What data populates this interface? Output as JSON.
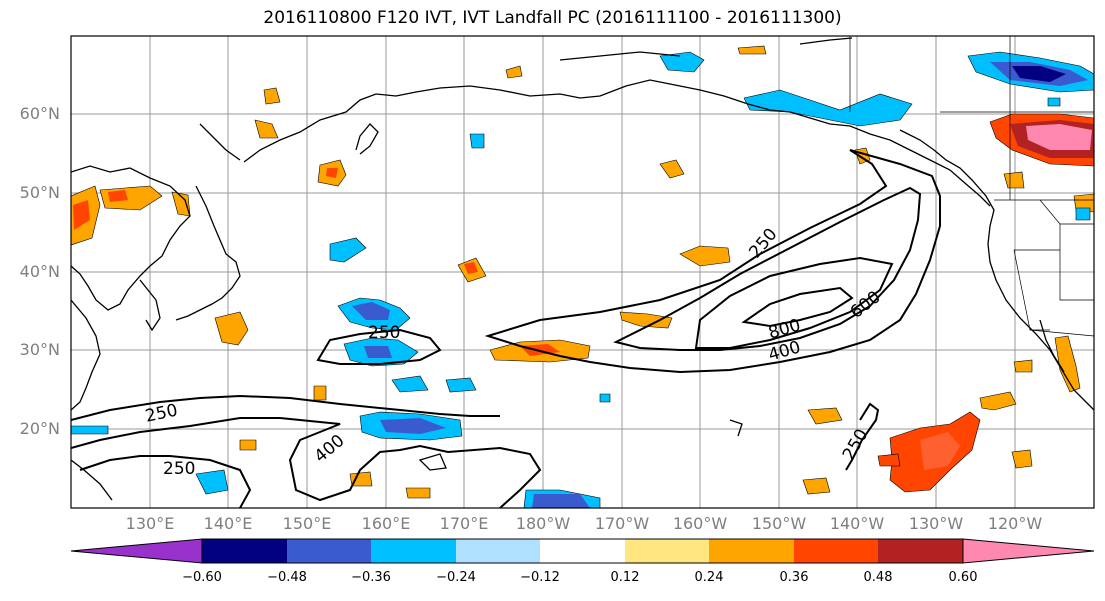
{
  "title": "2016110800 F120 IVT, IVT Landfall PC (2016111100 - 2016111300)",
  "lat_labels": [
    "60°N",
    "50°N",
    "40°N",
    "30°N",
    "20°N"
  ],
  "lon_labels": [
    "130°E",
    "140°E",
    "150°E",
    "160°E",
    "170°E",
    "180°W",
    "170°W",
    "160°W",
    "150°W",
    "140°W",
    "130°W",
    "120°W"
  ],
  "contour_labels": [
    "250",
    "250",
    "250",
    "250",
    "250",
    "400",
    "400",
    "600",
    "800"
  ],
  "colorbar": {
    "ticks": [
      "−0.60",
      "−0.48",
      "−0.36",
      "−0.24",
      "−0.12",
      "0.12",
      "0.24",
      "0.36",
      "0.48",
      "0.60"
    ],
    "colors": [
      "#9932cc",
      "#000080",
      "#3a5bd0",
      "#00bfff",
      "#b0e0ff",
      "#ffffff",
      "#ffe680",
      "#ffa500",
      "#ff4500",
      "#b22222",
      "#ff88b0"
    ]
  },
  "map": {
    "extent": {
      "lon": [
        120,
        250
      ],
      "lat": [
        10,
        70
      ]
    },
    "grid": true,
    "ivt_contour_levels": [
      250,
      400,
      600,
      800
    ]
  }
}
